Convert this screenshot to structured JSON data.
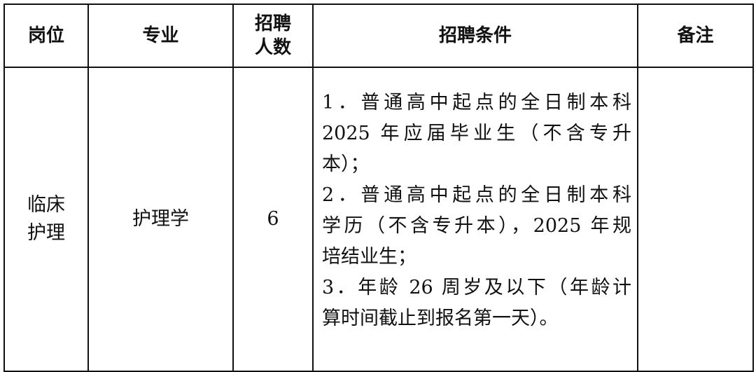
{
  "headers": [
    "岗位",
    "专业",
    "招聘人数",
    "招聘条件",
    "备注"
  ],
  "header_lines": {
    "count": [
      "招聘",
      "人数"
    ]
  },
  "row": {
    "position": [
      "临床",
      "护理"
    ],
    "major": "护理学",
    "count": "6",
    "conditions": [
      {
        "lines": [
          "1．普通高中起点的全日制本科",
          "2025 年应届毕业生（不含专升",
          "本）；"
        ]
      },
      {
        "lines": [
          "2．普通高中起点的全日制本科",
          "学历（不含专升本），2025 年规",
          "培结业生；"
        ]
      },
      {
        "lines": [
          "3．年龄 26 周岁及以下（年龄计",
          "算时间截止到报名第一天）。"
        ]
      }
    ],
    "remark": ""
  }
}
